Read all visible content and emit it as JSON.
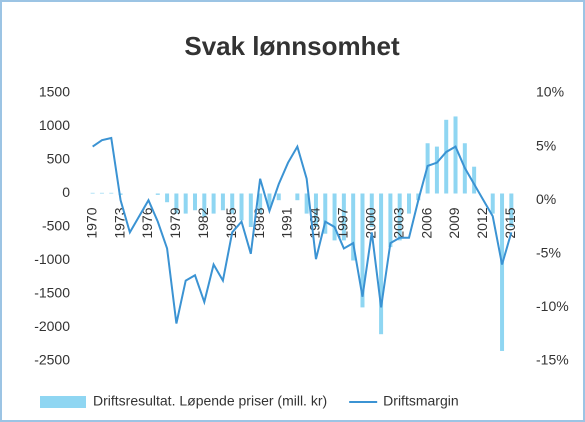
{
  "chart_data": {
    "type": "bar-line",
    "title": "Svak lønnsomhet",
    "categories": [
      "1970",
      null,
      null,
      "1973",
      null,
      null,
      "1976",
      null,
      null,
      "1979",
      null,
      null,
      "1982",
      null,
      null,
      "1985",
      null,
      null,
      "1988",
      null,
      null,
      "1991",
      null,
      null,
      "1994",
      null,
      null,
      "1997",
      null,
      null,
      "2000",
      null,
      null,
      "2003",
      null,
      null,
      "2006",
      null,
      null,
      "2009",
      null,
      null,
      "2012",
      null,
      null,
      "2015"
    ],
    "series": [
      {
        "name": "Driftsresultat. Løpende priser (mill. kr)",
        "color": "#8fd6f2",
        "type": "bar",
        "values": [
          10,
          10,
          10,
          -20,
          0,
          0,
          0,
          -20,
          -130,
          -300,
          -300,
          -250,
          -350,
          -300,
          -250,
          -300,
          -400,
          -500,
          -300,
          -200,
          -100,
          0,
          -100,
          -300,
          -500,
          -600,
          -700,
          -700,
          -1000,
          -1700,
          -500,
          -2100,
          -800,
          -700,
          -300,
          -100,
          750,
          700,
          1100,
          1150,
          750,
          400,
          0,
          -300,
          -2350,
          -500
        ]
      },
      {
        "name": "Driftsmargin",
        "color": "#3b93d3",
        "type": "line",
        "axis": "y2",
        "values": [
          5,
          5.6,
          5.8,
          0,
          -3,
          -1.5,
          0,
          -2,
          -4.5,
          -11.5,
          -7.5,
          -7,
          -9.5,
          -6,
          -7.5,
          -3,
          -2,
          -5,
          2,
          -1,
          1.5,
          3.5,
          5,
          2,
          -5.5,
          -2,
          -2.5,
          -4.5,
          -4,
          -9,
          -3,
          -10,
          -4,
          -3.5,
          -3.5,
          0,
          3.2,
          3.5,
          4.5,
          5,
          3,
          1.5,
          0,
          -1.5,
          -6,
          -3
        ]
      }
    ],
    "ylim": [
      -2500,
      1500
    ],
    "yticks": [
      1500,
      1000,
      500,
      0,
      -500,
      -1000,
      -1500,
      -2000,
      -2500
    ],
    "y2lim": [
      -15,
      10
    ],
    "y2ticks": [
      {
        "value": 10,
        "label": "10%"
      },
      {
        "value": 5,
        "label": "5%"
      },
      {
        "value": 0,
        "label": "0%"
      },
      {
        "value": -5,
        "label": "-5%"
      },
      {
        "value": -10,
        "label": "-10%"
      },
      {
        "value": -15,
        "label": "-15%"
      }
    ],
    "legend": "bottom"
  }
}
